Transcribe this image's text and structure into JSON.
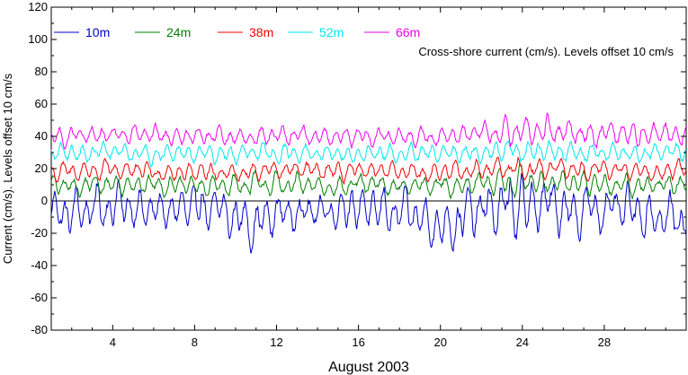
{
  "chart_data": {
    "type": "line",
    "title": "",
    "annotation": "Cross-shore current (cm/s). Levels offset 10 cm/s",
    "xlabel": "August 2003",
    "ylabel": "Current (cm/s). Levels offset 10 cm/s",
    "xlim": [
      1,
      32
    ],
    "ylim": [
      -80,
      120
    ],
    "xticks": [
      4,
      8,
      12,
      16,
      20,
      24,
      28
    ],
    "yticks": [
      -80,
      -60,
      -40,
      -20,
      0,
      20,
      40,
      60,
      80,
      100,
      120
    ],
    "zero_line": 0,
    "grid": false,
    "legend_position": "top",
    "series": [
      {
        "name": "10m",
        "color": "#0000cc",
        "offset": 0,
        "x": [
          1,
          2,
          3,
          4,
          5,
          6,
          7,
          8,
          9,
          10,
          11,
          12,
          13,
          14,
          15,
          16,
          17,
          18,
          19,
          20,
          21,
          22,
          23,
          24,
          25,
          26,
          27,
          28,
          29,
          30,
          31,
          32
        ],
        "mean": [
          -6,
          -8,
          -4,
          -2,
          -4,
          -6,
          -6,
          -4,
          -6,
          -10,
          -14,
          -8,
          -6,
          -6,
          -4,
          -4,
          -6,
          -8,
          -10,
          -16,
          -10,
          -6,
          -4,
          -4,
          -2,
          -4,
          -6,
          -4,
          -6,
          -8,
          -10,
          -12
        ],
        "amplitude": [
          10,
          12,
          12,
          14,
          12,
          10,
          10,
          12,
          12,
          12,
          12,
          12,
          12,
          10,
          10,
          12,
          12,
          12,
          12,
          12,
          14,
          14,
          16,
          18,
          16,
          14,
          14,
          12,
          12,
          12,
          12,
          12
        ]
      },
      {
        "name": "24m",
        "color": "#008000",
        "offset": 10,
        "x": [
          1,
          2,
          3,
          4,
          5,
          6,
          7,
          8,
          9,
          10,
          11,
          12,
          13,
          14,
          15,
          16,
          17,
          18,
          19,
          20,
          21,
          22,
          23,
          24,
          25,
          26,
          27,
          28,
          29,
          30,
          31,
          32
        ],
        "mean": [
          10,
          9,
          10,
          10,
          11,
          10,
          10,
          9,
          9,
          10,
          10,
          10,
          10,
          9,
          9,
          10,
          10,
          9,
          9,
          10,
          10,
          10,
          11,
          12,
          12,
          11,
          11,
          10,
          10,
          10,
          10,
          10
        ],
        "amplitude": [
          5,
          5,
          6,
          6,
          6,
          5,
          5,
          5,
          5,
          6,
          6,
          6,
          6,
          5,
          5,
          5,
          5,
          5,
          5,
          5,
          6,
          6,
          7,
          8,
          7,
          6,
          6,
          6,
          6,
          6,
          6,
          6
        ]
      },
      {
        "name": "38m",
        "color": "#ee0000",
        "offset": 20,
        "x": [
          1,
          2,
          3,
          4,
          5,
          6,
          7,
          8,
          9,
          10,
          11,
          12,
          13,
          14,
          15,
          16,
          17,
          18,
          19,
          20,
          21,
          22,
          23,
          24,
          25,
          26,
          27,
          28,
          29,
          30,
          31,
          32
        ],
        "mean": [
          18,
          18,
          19,
          19,
          19,
          18,
          18,
          18,
          18,
          18,
          18,
          19,
          19,
          18,
          18,
          18,
          18,
          18,
          18,
          18,
          19,
          19,
          20,
          20,
          20,
          19,
          19,
          19,
          19,
          19,
          19,
          19
        ],
        "amplitude": [
          5,
          5,
          5,
          5,
          5,
          5,
          5,
          5,
          5,
          5,
          5,
          5,
          5,
          5,
          5,
          5,
          5,
          5,
          5,
          5,
          5,
          5,
          6,
          6,
          6,
          5,
          5,
          5,
          5,
          5,
          5,
          5
        ]
      },
      {
        "name": "52m",
        "color": "#00e5ee",
        "offset": 30,
        "x": [
          1,
          2,
          3,
          4,
          5,
          6,
          7,
          8,
          9,
          10,
          11,
          12,
          13,
          14,
          15,
          16,
          17,
          18,
          19,
          20,
          21,
          22,
          23,
          24,
          25,
          26,
          27,
          28,
          29,
          30,
          31,
          32
        ],
        "mean": [
          29,
          29,
          30,
          30,
          30,
          29,
          29,
          29,
          29,
          29,
          29,
          30,
          30,
          29,
          29,
          29,
          29,
          29,
          29,
          29,
          30,
          30,
          31,
          31,
          31,
          30,
          30,
          30,
          30,
          30,
          30,
          30
        ],
        "amplitude": [
          5,
          5,
          5,
          5,
          5,
          5,
          5,
          5,
          5,
          5,
          5,
          5,
          5,
          5,
          5,
          5,
          5,
          5,
          5,
          5,
          5,
          5,
          6,
          6,
          6,
          5,
          5,
          5,
          5,
          5,
          5,
          5
        ]
      },
      {
        "name": "66m",
        "color": "#ee00ee",
        "offset": 40,
        "x": [
          1,
          2,
          3,
          4,
          5,
          6,
          7,
          8,
          9,
          10,
          11,
          12,
          13,
          14,
          15,
          16,
          17,
          18,
          19,
          20,
          21,
          22,
          23,
          24,
          25,
          26,
          27,
          28,
          29,
          30,
          31,
          32
        ],
        "mean": [
          40,
          40,
          40,
          41,
          41,
          40,
          40,
          40,
          40,
          40,
          40,
          41,
          41,
          40,
          40,
          40,
          40,
          40,
          40,
          40,
          41,
          41,
          42,
          43,
          43,
          42,
          42,
          42,
          42,
          42,
          42,
          42
        ],
        "amplitude": [
          5,
          5,
          5,
          5,
          5,
          5,
          5,
          5,
          5,
          5,
          5,
          5,
          5,
          5,
          5,
          5,
          5,
          5,
          5,
          5,
          5,
          6,
          7,
          8,
          8,
          7,
          7,
          7,
          7,
          7,
          7,
          7
        ]
      }
    ]
  }
}
